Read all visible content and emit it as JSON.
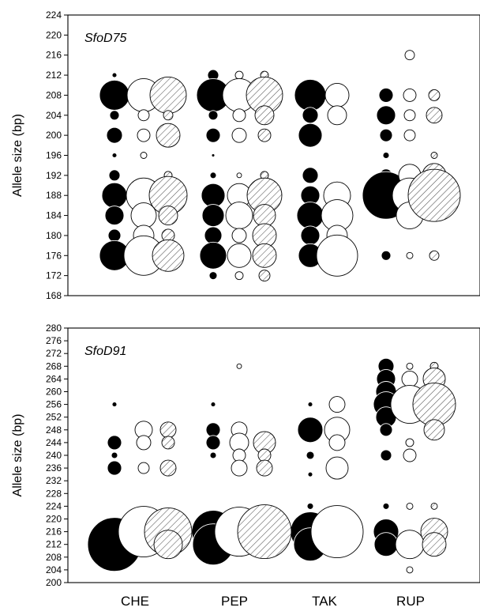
{
  "chart_data": [
    {
      "type": "scatter",
      "title": "SfoD75",
      "ylabel": "Allele size (bp)",
      "ylim": [
        168,
        224
      ],
      "yticks": [
        168,
        172,
        176,
        180,
        184,
        188,
        192,
        196,
        200,
        204,
        208,
        212,
        216,
        220,
        224
      ],
      "categories": [
        "CHE",
        "PEP",
        "TAK",
        "RUP"
      ],
      "series": [
        {
          "style": "black",
          "fill": "#000000",
          "points": [
            {
              "group": "CHE",
              "y": 212,
              "r": 3
            },
            {
              "group": "CHE",
              "y": 208,
              "r": 19
            },
            {
              "group": "CHE",
              "y": 204,
              "r": 6
            },
            {
              "group": "CHE",
              "y": 200,
              "r": 10
            },
            {
              "group": "CHE",
              "y": 196,
              "r": 3
            },
            {
              "group": "CHE",
              "y": 192,
              "r": 7
            },
            {
              "group": "CHE",
              "y": 188,
              "r": 16
            },
            {
              "group": "CHE",
              "y": 184,
              "r": 12
            },
            {
              "group": "CHE",
              "y": 180,
              "r": 8
            },
            {
              "group": "CHE",
              "y": 176,
              "r": 19
            },
            {
              "group": "PEP",
              "y": 212,
              "r": 7
            },
            {
              "group": "PEP",
              "y": 210,
              "r": 5
            },
            {
              "group": "PEP",
              "y": 208,
              "r": 21
            },
            {
              "group": "PEP",
              "y": 204,
              "r": 6
            },
            {
              "group": "PEP",
              "y": 200,
              "r": 9
            },
            {
              "group": "PEP",
              "y": 196,
              "r": 2
            },
            {
              "group": "PEP",
              "y": 192,
              "r": 4
            },
            {
              "group": "PEP",
              "y": 188,
              "r": 15
            },
            {
              "group": "PEP",
              "y": 184,
              "r": 14
            },
            {
              "group": "PEP",
              "y": 180,
              "r": 11
            },
            {
              "group": "PEP",
              "y": 176,
              "r": 17
            },
            {
              "group": "PEP",
              "y": 172,
              "r": 5
            },
            {
              "group": "TAK",
              "y": 208,
              "r": 20
            },
            {
              "group": "TAK",
              "y": 204,
              "r": 10
            },
            {
              "group": "TAK",
              "y": 200,
              "r": 15
            },
            {
              "group": "TAK",
              "y": 192,
              "r": 10
            },
            {
              "group": "TAK",
              "y": 188,
              "r": 12
            },
            {
              "group": "TAK",
              "y": 184,
              "r": 17
            },
            {
              "group": "TAK",
              "y": 180,
              "r": 12
            },
            {
              "group": "TAK",
              "y": 176,
              "r": 15
            },
            {
              "group": "RUP",
              "y": 208,
              "r": 9
            },
            {
              "group": "RUP",
              "y": 204,
              "r": 12
            },
            {
              "group": "RUP",
              "y": 200,
              "r": 8
            },
            {
              "group": "RUP",
              "y": 196,
              "r": 4
            },
            {
              "group": "RUP",
              "y": 192,
              "r": 8
            },
            {
              "group": "RUP",
              "y": 188,
              "r": 30
            },
            {
              "group": "RUP",
              "y": 176,
              "r": 6
            }
          ]
        },
        {
          "style": "white",
          "fill": "#ffffff",
          "points": [
            {
              "group": "CHE",
              "y": 208,
              "r": 21
            },
            {
              "group": "CHE",
              "y": 204,
              "r": 7
            },
            {
              "group": "CHE",
              "y": 200,
              "r": 8
            },
            {
              "group": "CHE",
              "y": 196,
              "r": 4
            },
            {
              "group": "CHE",
              "y": 188,
              "r": 22
            },
            {
              "group": "CHE",
              "y": 184,
              "r": 16
            },
            {
              "group": "CHE",
              "y": 180,
              "r": 13
            },
            {
              "group": "CHE",
              "y": 176,
              "r": 25
            },
            {
              "group": "PEP",
              "y": 212,
              "r": 5
            },
            {
              "group": "PEP",
              "y": 208,
              "r": 21
            },
            {
              "group": "PEP",
              "y": 204,
              "r": 8
            },
            {
              "group": "PEP",
              "y": 200,
              "r": 9
            },
            {
              "group": "PEP",
              "y": 192,
              "r": 3
            },
            {
              "group": "PEP",
              "y": 188,
              "r": 15
            },
            {
              "group": "PEP",
              "y": 184,
              "r": 17
            },
            {
              "group": "PEP",
              "y": 180,
              "r": 9
            },
            {
              "group": "PEP",
              "y": 176,
              "r": 15
            },
            {
              "group": "PEP",
              "y": 172,
              "r": 5
            },
            {
              "group": "TAK",
              "y": 208,
              "r": 15
            },
            {
              "group": "TAK",
              "y": 204,
              "r": 12
            },
            {
              "group": "TAK",
              "y": 188,
              "r": 17
            },
            {
              "group": "TAK",
              "y": 184,
              "r": 20
            },
            {
              "group": "TAK",
              "y": 180,
              "r": 13
            },
            {
              "group": "TAK",
              "y": 176,
              "r": 26
            },
            {
              "group": "RUP",
              "y": 216,
              "r": 6
            },
            {
              "group": "RUP",
              "y": 208,
              "r": 8
            },
            {
              "group": "RUP",
              "y": 204,
              "r": 7
            },
            {
              "group": "RUP",
              "y": 200,
              "r": 7
            },
            {
              "group": "RUP",
              "y": 192,
              "r": 14
            },
            {
              "group": "RUP",
              "y": 188,
              "r": 22
            },
            {
              "group": "RUP",
              "y": 184,
              "r": 17
            },
            {
              "group": "RUP",
              "y": 176,
              "r": 4
            }
          ]
        },
        {
          "style": "hatched",
          "fill": "hatch",
          "points": [
            {
              "group": "CHE",
              "y": 208,
              "r": 23
            },
            {
              "group": "CHE",
              "y": 204,
              "r": 6
            },
            {
              "group": "CHE",
              "y": 200,
              "r": 15
            },
            {
              "group": "CHE",
              "y": 192,
              "r": 5
            },
            {
              "group": "CHE",
              "y": 188,
              "r": 24
            },
            {
              "group": "CHE",
              "y": 184,
              "r": 12
            },
            {
              "group": "CHE",
              "y": 180,
              "r": 8
            },
            {
              "group": "CHE",
              "y": 176,
              "r": 20
            },
            {
              "group": "PEP",
              "y": 212,
              "r": 5
            },
            {
              "group": "PEP",
              "y": 208,
              "r": 23
            },
            {
              "group": "PEP",
              "y": 204,
              "r": 12
            },
            {
              "group": "PEP",
              "y": 200,
              "r": 8
            },
            {
              "group": "PEP",
              "y": 192,
              "r": 5
            },
            {
              "group": "PEP",
              "y": 188,
              "r": 22
            },
            {
              "group": "PEP",
              "y": 184,
              "r": 14
            },
            {
              "group": "PEP",
              "y": 180,
              "r": 15
            },
            {
              "group": "PEP",
              "y": 176,
              "r": 15
            },
            {
              "group": "PEP",
              "y": 172,
              "r": 7
            },
            {
              "group": "RUP",
              "y": 208,
              "r": 7
            },
            {
              "group": "RUP",
              "y": 204,
              "r": 10
            },
            {
              "group": "RUP",
              "y": 196,
              "r": 4
            },
            {
              "group": "RUP",
              "y": 192,
              "r": 15
            },
            {
              "group": "RUP",
              "y": 188,
              "r": 33
            },
            {
              "group": "RUP",
              "y": 176,
              "r": 6
            }
          ]
        }
      ]
    },
    {
      "type": "scatter",
      "title": "SfoD91",
      "ylabel": "Allele size (bp)",
      "ylim": [
        200,
        280
      ],
      "yticks": [
        200,
        204,
        208,
        212,
        216,
        220,
        224,
        228,
        232,
        236,
        240,
        244,
        248,
        252,
        256,
        260,
        264,
        268,
        272,
        276,
        280
      ],
      "categories": [
        "CHE",
        "PEP",
        "TAK",
        "RUP"
      ],
      "series": [
        {
          "style": "black",
          "fill": "#000000",
          "points": [
            {
              "group": "CHE",
              "y": 256,
              "r": 3
            },
            {
              "group": "CHE",
              "y": 244,
              "r": 9
            },
            {
              "group": "CHE",
              "y": 240,
              "r": 4
            },
            {
              "group": "CHE",
              "y": 236,
              "r": 9
            },
            {
              "group": "CHE",
              "y": 212,
              "r": 34
            },
            {
              "group": "PEP",
              "y": 256,
              "r": 3
            },
            {
              "group": "PEP",
              "y": 248,
              "r": 9
            },
            {
              "group": "PEP",
              "y": 244,
              "r": 9
            },
            {
              "group": "PEP",
              "y": 240,
              "r": 4
            },
            {
              "group": "PEP",
              "y": 216,
              "r": 27
            },
            {
              "group": "PEP",
              "y": 212,
              "r": 26
            },
            {
              "group": "TAK",
              "y": 256,
              "r": 3
            },
            {
              "group": "TAK",
              "y": 248,
              "r": 16
            },
            {
              "group": "TAK",
              "y": 240,
              "r": 5
            },
            {
              "group": "TAK",
              "y": 234,
              "r": 3
            },
            {
              "group": "TAK",
              "y": 224,
              "r": 4
            },
            {
              "group": "TAK",
              "y": 216,
              "r": 25
            },
            {
              "group": "TAK",
              "y": 212,
              "r": 21
            },
            {
              "group": "RUP",
              "y": 268,
              "r": 10
            },
            {
              "group": "RUP",
              "y": 264,
              "r": 12
            },
            {
              "group": "RUP",
              "y": 260,
              "r": 13
            },
            {
              "group": "RUP",
              "y": 256,
              "r": 16
            },
            {
              "group": "RUP",
              "y": 252,
              "r": 13
            },
            {
              "group": "RUP",
              "y": 248,
              "r": 8
            },
            {
              "group": "RUP",
              "y": 240,
              "r": 7
            },
            {
              "group": "RUP",
              "y": 224,
              "r": 4
            },
            {
              "group": "RUP",
              "y": 216,
              "r": 16
            },
            {
              "group": "RUP",
              "y": 212,
              "r": 15
            }
          ]
        },
        {
          "style": "white",
          "fill": "#ffffff",
          "points": [
            {
              "group": "CHE",
              "y": 248,
              "r": 11
            },
            {
              "group": "CHE",
              "y": 244,
              "r": 9
            },
            {
              "group": "CHE",
              "y": 236,
              "r": 7
            },
            {
              "group": "CHE",
              "y": 216,
              "r": 32
            },
            {
              "group": "PEP",
              "y": 268,
              "r": 3
            },
            {
              "group": "PEP",
              "y": 248,
              "r": 10
            },
            {
              "group": "PEP",
              "y": 244,
              "r": 12
            },
            {
              "group": "PEP",
              "y": 240,
              "r": 8
            },
            {
              "group": "PEP",
              "y": 236,
              "r": 10
            },
            {
              "group": "PEP",
              "y": 220,
              "r": 3
            },
            {
              "group": "PEP",
              "y": 216,
              "r": 31
            },
            {
              "group": "TAK",
              "y": 256,
              "r": 10
            },
            {
              "group": "TAK",
              "y": 248,
              "r": 16
            },
            {
              "group": "TAK",
              "y": 244,
              "r": 10
            },
            {
              "group": "TAK",
              "y": 236,
              "r": 14
            },
            {
              "group": "TAK",
              "y": 216,
              "r": 33
            },
            {
              "group": "RUP",
              "y": 268,
              "r": 4
            },
            {
              "group": "RUP",
              "y": 264,
              "r": 10
            },
            {
              "group": "RUP",
              "y": 256,
              "r": 24
            },
            {
              "group": "RUP",
              "y": 244,
              "r": 5
            },
            {
              "group": "RUP",
              "y": 240,
              "r": 8
            },
            {
              "group": "RUP",
              "y": 224,
              "r": 4
            },
            {
              "group": "RUP",
              "y": 212,
              "r": 18
            },
            {
              "group": "RUP",
              "y": 204,
              "r": 4
            }
          ]
        },
        {
          "style": "hatched",
          "fill": "hatch",
          "points": [
            {
              "group": "CHE",
              "y": 248,
              "r": 10
            },
            {
              "group": "CHE",
              "y": 244,
              "r": 8
            },
            {
              "group": "CHE",
              "y": 236,
              "r": 10
            },
            {
              "group": "CHE",
              "y": 220,
              "r": 5
            },
            {
              "group": "CHE",
              "y": 216,
              "r": 30
            },
            {
              "group": "CHE",
              "y": 212,
              "r": 18
            },
            {
              "group": "PEP",
              "y": 244,
              "r": 14
            },
            {
              "group": "PEP",
              "y": 240,
              "r": 8
            },
            {
              "group": "PEP",
              "y": 236,
              "r": 10
            },
            {
              "group": "PEP",
              "y": 216,
              "r": 34
            },
            {
              "group": "RUP",
              "y": 268,
              "r": 5
            },
            {
              "group": "RUP",
              "y": 264,
              "r": 14
            },
            {
              "group": "RUP",
              "y": 256,
              "r": 27
            },
            {
              "group": "RUP",
              "y": 248,
              "r": 13
            },
            {
              "group": "RUP",
              "y": 224,
              "r": 4
            },
            {
              "group": "RUP",
              "y": 216,
              "r": 17
            },
            {
              "group": "RUP",
              "y": 212,
              "r": 15
            }
          ]
        }
      ]
    }
  ],
  "x_category_labels": [
    "CHE",
    "PEP",
    "TAK",
    "RUP"
  ]
}
